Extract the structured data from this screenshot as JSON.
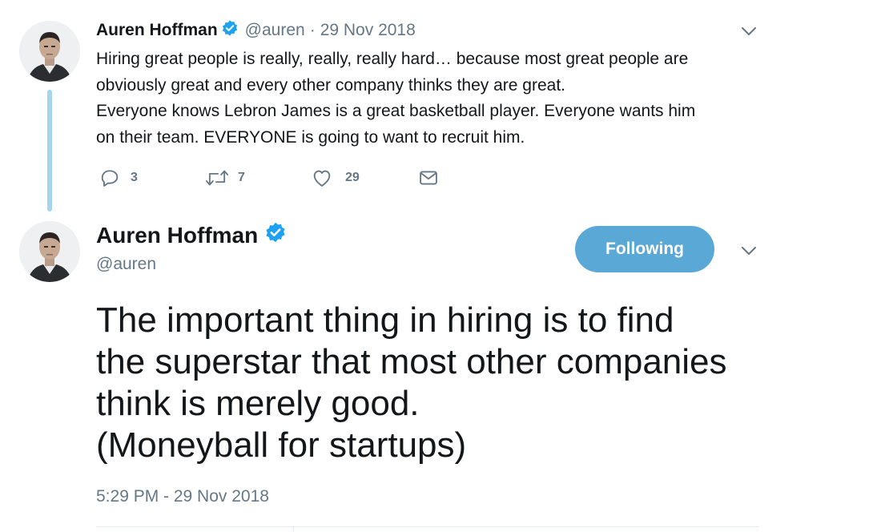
{
  "colors": {
    "text": "#14171a",
    "secondary": "#657786",
    "accent": "#1da1f2",
    "following_button": "#5aa8d6",
    "thread_line": "#a5d4ef"
  },
  "parent_tweet": {
    "author_name": "Auren Hoffman",
    "handle": "@auren",
    "separator": "·",
    "date": "29 Nov 2018",
    "text_lines": [
      "Hiring great people is really, really, really hard… because most great people are",
      "obviously great and every other company thinks they are great.",
      "Everyone knows Lebron James is a great basketball player. Everyone wants him",
      "on their team. EVERYONE is going to want to recruit him."
    ],
    "actions": {
      "reply": {
        "icon": "reply-icon",
        "count": "3"
      },
      "retweet": {
        "icon": "retweet-icon",
        "count": "7"
      },
      "like": {
        "icon": "heart-icon",
        "count": "29"
      },
      "message": {
        "icon": "envelope-icon"
      }
    }
  },
  "main_tweet": {
    "author_name": "Auren Hoffman",
    "handle": "@auren",
    "follow_button": "Following",
    "text_lines": [
      "The important thing in hiring is to find",
      "the superstar that most other companies",
      "think is merely good.",
      "(Moneyball for startups)"
    ],
    "timestamp": "5:29 PM - 29 Nov 2018"
  }
}
